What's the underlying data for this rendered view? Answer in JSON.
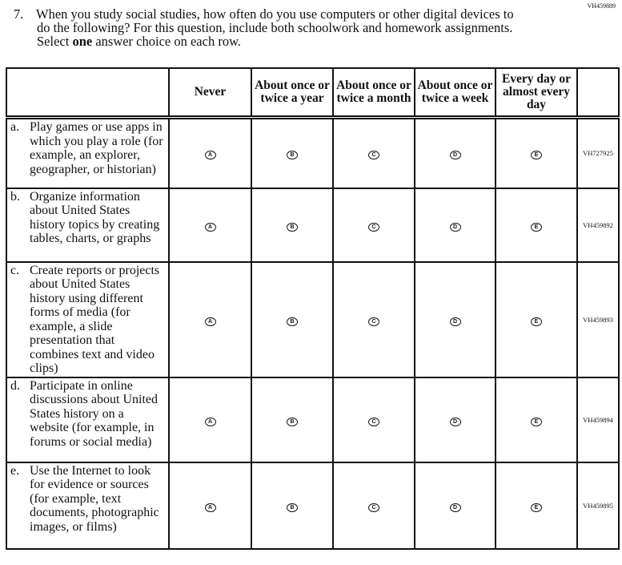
{
  "question_id": "VH459889",
  "question": {
    "number": "7.",
    "text_before": "When you study social studies, how often do you use computers or other digital devices to do the following? For this question, include both schoolwork and homework assignments. Select ",
    "emphasis": "one",
    "text_after": " answer choice on each row."
  },
  "columns": [
    "Never",
    "About once or twice a year",
    "About once or twice a month",
    "About once or twice a week",
    "Every day or almost every day"
  ],
  "bubbles": [
    "A",
    "B",
    "C",
    "D",
    "E"
  ],
  "rows": [
    {
      "letter": "a.",
      "text": "Play games or use apps in which you play a role (for example, an explorer, geographer, or historian)",
      "id": "VH727925"
    },
    {
      "letter": "b.",
      "text": "Organize information about United States history topics by creating tables, charts, or graphs",
      "id": "VH459892"
    },
    {
      "letter": "c.",
      "text": "Create reports or projects about United States history using different forms of media (for example, a slide presentation that combines text and video clips)",
      "id": "VH459893"
    },
    {
      "letter": "d.",
      "text": "Participate in online discussions about United States history on a website (for example, in forums or social media)",
      "id": "VH459894"
    },
    {
      "letter": "e.",
      "text": "Use the Internet to look for evidence or sources (for example, text documents, photographic images, or films)",
      "id": "VH459895"
    }
  ]
}
